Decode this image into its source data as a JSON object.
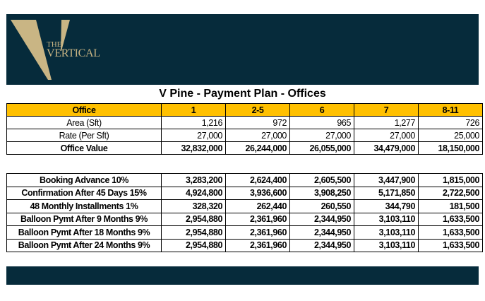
{
  "logo": {
    "line1": "THE",
    "line2": "VERTICAL",
    "gold": "#c9b584",
    "navy": "#062b3b"
  },
  "title": "V Pine - Payment Plan - Offices",
  "accent": "#ffc000",
  "pricing": {
    "header": [
      "Office",
      "1",
      "2-5",
      "6",
      "7",
      "8-11"
    ],
    "rows": [
      [
        "Area (Sft)",
        "1,216",
        "972",
        "965",
        "1,277",
        "726"
      ],
      [
        "Rate (Per Sft)",
        "27,000",
        "27,000",
        "27,000",
        "27,000",
        "25,000"
      ],
      [
        "Office Value",
        "32,832,000",
        "26,244,000",
        "26,055,000",
        "34,479,000",
        "18,150,000"
      ]
    ]
  },
  "schedule": {
    "rows": [
      [
        "Booking Advance 10%",
        "3,283,200",
        "2,624,400",
        "2,605,500",
        "3,447,900",
        "1,815,000"
      ],
      [
        "Confirmation After 45 Days 15%",
        "4,924,800",
        "3,936,600",
        "3,908,250",
        "5,171,850",
        "2,722,500"
      ],
      [
        "48 Monthly Installments 1%",
        "328,320",
        "262,440",
        "260,550",
        "344,790",
        "181,500"
      ],
      [
        "Balloon Pymt After 9 Months 9%",
        "2,954,880",
        "2,361,960",
        "2,344,950",
        "3,103,110",
        "1,633,500"
      ],
      [
        "Balloon Pymt After 18 Months 9%",
        "2,954,880",
        "2,361,960",
        "2,344,950",
        "3,103,110",
        "1,633,500"
      ],
      [
        "Balloon Pymt After 24 Months 9%",
        "2,954,880",
        "2,361,960",
        "2,344,950",
        "3,103,110",
        "1,633,500"
      ]
    ]
  }
}
